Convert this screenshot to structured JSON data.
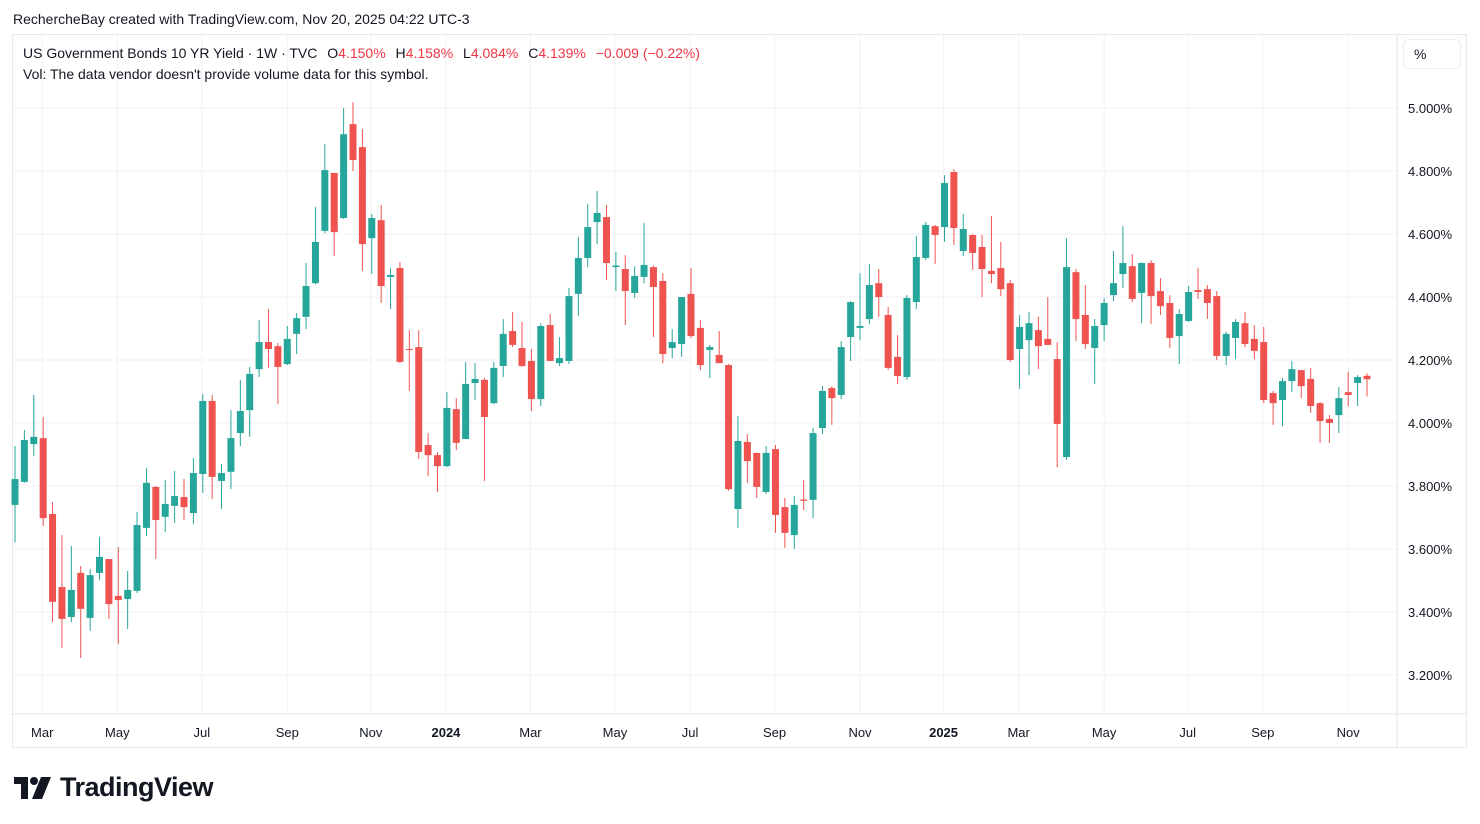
{
  "credit": "RechercheBay created with TradingView.com, Nov 20, 2025 04:22 UTC-3",
  "legend": {
    "symbol": "US Government Bonds 10 YR Yield · 1W · TVC",
    "o_label": "O",
    "o": "4.150%",
    "h_label": "H",
    "h": "4.158%",
    "l_label": "L",
    "l": "4.084%",
    "c_label": "C",
    "c": "4.139%",
    "change": "−0.009 (−0.22%)",
    "vol": "Vol: The data vendor doesn't provide volume data for this symbol."
  },
  "scale_button": "%",
  "logo": {
    "text": "TradingView"
  },
  "colors": {
    "up": "#26a69a",
    "down": "#ef5350",
    "grid": "#f2f2f4",
    "text": "#131722"
  },
  "chart_data": {
    "type": "candlestick",
    "title": "US Government Bonds 10 YR Yield · 1W · TVC",
    "ylabel": "%",
    "ylim": [
      3.076,
      5.232
    ],
    "grid": true,
    "y_ticks": [
      "3.200%",
      "3.400%",
      "3.600%",
      "3.800%",
      "4.000%",
      "4.200%",
      "4.400%",
      "4.600%",
      "4.800%",
      "5.000%"
    ],
    "y_tick_values": [
      3.2,
      3.4,
      3.6,
      3.8,
      4.0,
      4.2,
      4.4,
      4.6,
      4.8,
      5.0
    ],
    "x_ticks": [
      {
        "label": "Mar",
        "at": 2.9,
        "bold": false
      },
      {
        "label": "May",
        "at": 10.9,
        "bold": false
      },
      {
        "label": "Jul",
        "at": 19.9,
        "bold": false
      },
      {
        "label": "Sep",
        "at": 29.0,
        "bold": false
      },
      {
        "label": "Nov",
        "at": 37.9,
        "bold": false
      },
      {
        "label": "2024",
        "at": 45.9,
        "bold": true
      },
      {
        "label": "Mar",
        "at": 54.9,
        "bold": false
      },
      {
        "label": "May",
        "at": 63.9,
        "bold": false
      },
      {
        "label": "Jul",
        "at": 71.9,
        "bold": false
      },
      {
        "label": "Sep",
        "at": 80.9,
        "bold": false
      },
      {
        "label": "Nov",
        "at": 90.0,
        "bold": false
      },
      {
        "label": "2025",
        "at": 98.9,
        "bold": true
      },
      {
        "label": "Mar",
        "at": 106.9,
        "bold": false
      },
      {
        "label": "May",
        "at": 116.0,
        "bold": false
      },
      {
        "label": "Jul",
        "at": 124.9,
        "bold": false
      },
      {
        "label": "Sep",
        "at": 132.9,
        "bold": false
      },
      {
        "label": "Nov",
        "at": 142.0,
        "bold": false
      }
    ],
    "ohlc_fields": [
      "open",
      "high",
      "low",
      "close"
    ],
    "candles": [
      [
        3.74,
        3.927,
        3.62,
        3.822
      ],
      [
        3.813,
        3.978,
        3.81,
        3.946
      ],
      [
        3.933,
        4.089,
        3.895,
        3.956
      ],
      [
        3.952,
        4.019,
        3.673,
        3.698
      ],
      [
        3.711,
        3.749,
        3.368,
        3.432
      ],
      [
        3.479,
        3.644,
        3.286,
        3.378
      ],
      [
        3.384,
        3.61,
        3.368,
        3.47
      ],
      [
        3.524,
        3.546,
        3.254,
        3.41
      ],
      [
        3.381,
        3.537,
        3.34,
        3.517
      ],
      [
        3.524,
        3.638,
        3.502,
        3.575
      ],
      [
        3.568,
        3.568,
        3.378,
        3.425
      ],
      [
        3.451,
        3.606,
        3.298,
        3.438
      ],
      [
        3.441,
        3.53,
        3.346,
        3.47
      ],
      [
        3.467,
        3.717,
        3.46,
        3.676
      ],
      [
        3.667,
        3.857,
        3.641,
        3.81
      ],
      [
        3.797,
        3.8,
        3.568,
        3.692
      ],
      [
        3.702,
        3.819,
        3.654,
        3.743
      ],
      [
        3.737,
        3.848,
        3.683,
        3.768
      ],
      [
        3.765,
        3.822,
        3.692,
        3.733
      ],
      [
        3.714,
        3.889,
        3.679,
        3.841
      ],
      [
        3.838,
        4.092,
        3.778,
        4.07
      ],
      [
        4.07,
        4.089,
        3.759,
        3.829
      ],
      [
        3.816,
        3.87,
        3.727,
        3.841
      ],
      [
        3.845,
        4.041,
        3.79,
        3.952
      ],
      [
        3.968,
        4.137,
        3.927,
        4.038
      ],
      [
        4.041,
        4.178,
        3.956,
        4.156
      ],
      [
        4.171,
        4.327,
        4.146,
        4.257
      ],
      [
        4.257,
        4.362,
        4.175,
        4.235
      ],
      [
        4.244,
        4.254,
        4.06,
        4.178
      ],
      [
        4.187,
        4.308,
        4.184,
        4.267
      ],
      [
        4.283,
        4.349,
        4.219,
        4.333
      ],
      [
        4.337,
        4.508,
        4.298,
        4.435
      ],
      [
        4.444,
        4.686,
        4.44,
        4.575
      ],
      [
        4.61,
        4.886,
        4.603,
        4.803
      ],
      [
        4.794,
        4.794,
        4.53,
        4.606
      ],
      [
        4.651,
        5.0,
        4.648,
        4.917
      ],
      [
        4.949,
        5.019,
        4.8,
        4.835
      ],
      [
        4.876,
        4.933,
        4.483,
        4.568
      ],
      [
        4.587,
        4.664,
        4.473,
        4.651
      ],
      [
        4.644,
        4.692,
        4.381,
        4.435
      ],
      [
        4.464,
        4.492,
        4.362,
        4.47
      ],
      [
        4.492,
        4.511,
        4.19,
        4.194
      ],
      [
        4.235,
        4.295,
        4.102,
        4.232
      ],
      [
        4.241,
        4.295,
        3.886,
        3.908
      ],
      [
        3.93,
        3.968,
        3.832,
        3.898
      ],
      [
        3.898,
        3.908,
        3.781,
        3.863
      ],
      [
        3.863,
        4.098,
        3.86,
        4.048
      ],
      [
        4.044,
        4.079,
        3.914,
        3.937
      ],
      [
        3.949,
        4.194,
        3.949,
        4.124
      ],
      [
        4.127,
        4.19,
        4.073,
        4.14
      ],
      [
        4.137,
        4.143,
        3.816,
        4.019
      ],
      [
        4.063,
        4.194,
        4.06,
        4.175
      ],
      [
        4.181,
        4.33,
        4.146,
        4.283
      ],
      [
        4.292,
        4.352,
        4.241,
        4.248
      ],
      [
        4.238,
        4.321,
        4.178,
        4.181
      ],
      [
        4.197,
        4.235,
        4.038,
        4.076
      ],
      [
        4.076,
        4.317,
        4.054,
        4.308
      ],
      [
        4.311,
        4.346,
        4.197,
        4.197
      ],
      [
        4.19,
        4.273,
        4.181,
        4.206
      ],
      [
        4.197,
        4.429,
        4.187,
        4.403
      ],
      [
        4.41,
        4.59,
        4.34,
        4.524
      ],
      [
        4.524,
        4.695,
        4.495,
        4.622
      ],
      [
        4.638,
        4.737,
        4.568,
        4.667
      ],
      [
        4.654,
        4.692,
        4.454,
        4.508
      ],
      [
        4.495,
        4.543,
        4.419,
        4.5
      ],
      [
        4.489,
        4.533,
        4.311,
        4.419
      ],
      [
        4.413,
        4.498,
        4.397,
        4.467
      ],
      [
        4.464,
        4.635,
        4.444,
        4.502
      ],
      [
        4.495,
        4.5,
        4.273,
        4.432
      ],
      [
        4.451,
        4.476,
        4.19,
        4.219
      ],
      [
        4.238,
        4.298,
        4.206,
        4.257
      ],
      [
        4.251,
        4.4,
        4.21,
        4.4
      ],
      [
        4.41,
        4.492,
        4.27,
        4.276
      ],
      [
        4.302,
        4.327,
        4.168,
        4.184
      ],
      [
        4.232,
        4.248,
        4.143,
        4.241
      ],
      [
        4.216,
        4.292,
        4.19,
        4.19
      ],
      [
        4.184,
        4.187,
        3.785,
        3.79
      ],
      [
        3.727,
        4.022,
        3.667,
        3.943
      ],
      [
        3.94,
        3.965,
        3.81,
        3.879
      ],
      [
        3.905,
        3.905,
        3.762,
        3.797
      ],
      [
        3.781,
        3.927,
        3.775,
        3.905
      ],
      [
        3.917,
        3.93,
        3.651,
        3.708
      ],
      [
        3.733,
        3.762,
        3.603,
        3.651
      ],
      [
        3.644,
        3.768,
        3.6,
        3.74
      ],
      [
        3.757,
        3.819,
        3.724,
        3.753
      ],
      [
        3.756,
        3.984,
        3.698,
        3.968
      ],
      [
        3.984,
        4.117,
        3.965,
        4.102
      ],
      [
        4.111,
        4.117,
        3.994,
        4.079
      ],
      [
        4.089,
        4.26,
        4.076,
        4.241
      ],
      [
        4.273,
        4.387,
        4.197,
        4.384
      ],
      [
        4.302,
        4.476,
        4.263,
        4.308
      ],
      [
        4.33,
        4.505,
        4.314,
        4.438
      ],
      [
        4.444,
        4.489,
        4.337,
        4.4
      ],
      [
        4.343,
        4.368,
        4.168,
        4.175
      ],
      [
        4.21,
        4.279,
        4.124,
        4.149
      ],
      [
        4.146,
        4.406,
        4.137,
        4.397
      ],
      [
        4.384,
        4.594,
        4.362,
        4.527
      ],
      [
        4.524,
        4.638,
        4.517,
        4.629
      ],
      [
        4.625,
        4.629,
        4.505,
        4.597
      ],
      [
        4.622,
        4.787,
        4.575,
        4.762
      ],
      [
        4.797,
        4.806,
        4.565,
        4.619
      ],
      [
        4.546,
        4.663,
        4.53,
        4.616
      ],
      [
        4.597,
        4.6,
        4.486,
        4.54
      ],
      [
        4.559,
        4.597,
        4.4,
        4.489
      ],
      [
        4.483,
        4.657,
        4.444,
        4.473
      ],
      [
        4.492,
        4.575,
        4.403,
        4.425
      ],
      [
        4.444,
        4.454,
        4.194,
        4.2
      ],
      [
        4.235,
        4.343,
        4.108,
        4.305
      ],
      [
        4.263,
        4.352,
        4.152,
        4.317
      ],
      [
        4.295,
        4.337,
        4.171,
        4.244
      ],
      [
        4.267,
        4.4,
        4.248,
        4.248
      ],
      [
        4.203,
        4.257,
        3.86,
        3.997
      ],
      [
        3.892,
        4.587,
        3.883,
        4.495
      ],
      [
        4.479,
        4.489,
        4.26,
        4.33
      ],
      [
        4.343,
        4.438,
        4.235,
        4.251
      ],
      [
        4.238,
        4.33,
        4.124,
        4.308
      ],
      [
        4.311,
        4.397,
        4.26,
        4.381
      ],
      [
        4.406,
        4.546,
        4.387,
        4.444
      ],
      [
        4.473,
        4.625,
        4.429,
        4.508
      ],
      [
        4.498,
        4.537,
        4.384,
        4.394
      ],
      [
        4.413,
        4.511,
        4.317,
        4.508
      ],
      [
        4.508,
        4.517,
        4.314,
        4.403
      ],
      [
        4.419,
        4.46,
        4.343,
        4.371
      ],
      [
        4.381,
        4.406,
        4.238,
        4.27
      ],
      [
        4.276,
        4.362,
        4.187,
        4.346
      ],
      [
        4.324,
        4.435,
        4.321,
        4.416
      ],
      [
        4.422,
        4.492,
        4.394,
        4.416
      ],
      [
        4.425,
        4.438,
        4.33,
        4.381
      ],
      [
        4.403,
        4.419,
        4.2,
        4.213
      ],
      [
        4.213,
        4.289,
        4.184,
        4.283
      ],
      [
        4.27,
        4.33,
        4.203,
        4.321
      ],
      [
        4.317,
        4.352,
        4.241,
        4.251
      ],
      [
        4.267,
        4.311,
        4.203,
        4.229
      ],
      [
        4.257,
        4.305,
        4.063,
        4.073
      ],
      [
        4.095,
        4.102,
        3.994,
        4.063
      ],
      [
        4.073,
        4.143,
        3.99,
        4.133
      ],
      [
        4.133,
        4.197,
        4.098,
        4.171
      ],
      [
        4.168,
        4.168,
        4.079,
        4.117
      ],
      [
        4.14,
        4.175,
        4.032,
        4.054
      ],
      [
        4.063,
        4.066,
        3.937,
        4.006
      ],
      [
        4.013,
        4.025,
        3.937,
        4.0
      ],
      [
        4.025,
        4.114,
        3.968,
        4.079
      ],
      [
        4.098,
        4.162,
        4.054,
        4.089
      ],
      [
        4.127,
        4.152,
        4.054,
        4.146
      ],
      [
        4.15,
        4.158,
        4.084,
        4.139
      ]
    ]
  }
}
